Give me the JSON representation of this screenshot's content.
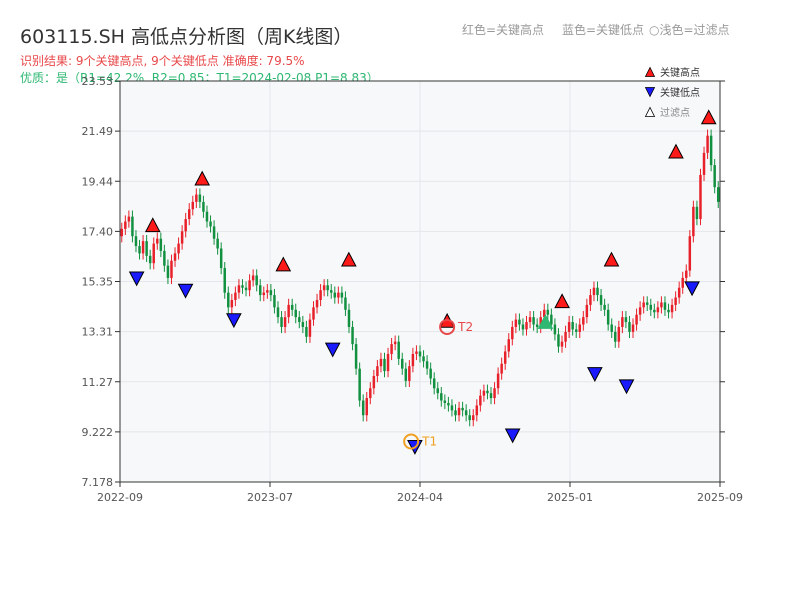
{
  "header": {
    "title": "603115.SH 高低点分析图（周K线图）",
    "legend_red": "红色=关键高点",
    "legend_blue": "蓝色=关键低点",
    "legend_light": "○浅色=过滤点",
    "result_line": "识别结果: 9个关键高点, 9个关键低点  准确度: 79.5%",
    "quality_line": "优质：是（R1=42.2%, R2=0.85；T1=2024-02-08 P1=8.83）"
  },
  "colors": {
    "up": "#e8202a",
    "down": "#11903f",
    "high_marker": "#ff1a1a",
    "low_marker": "#1a1aff",
    "t_marker": "#f0a020",
    "t2_marker": "#e8484a",
    "plot_bg": "#f7f8fa"
  },
  "chart_data": {
    "type": "candlestick",
    "title": "603115.SH 高低点分析图（周K线图）",
    "ylim": [
      7.178,
      23.53
    ],
    "y_ticks": [
      "7.178",
      "9.222",
      "11.27",
      "13.31",
      "15.35",
      "17.40",
      "19.44",
      "21.49",
      "23.53"
    ],
    "x_ticks": [
      "2022-09",
      "2023-07",
      "2024-04",
      "2025-01",
      "2025-09"
    ],
    "close_series": [
      17.5,
      17.8,
      18.0,
      17.2,
      16.8,
      16.5,
      17.0,
      16.4,
      16.1,
      16.9,
      17.1,
      16.6,
      16.0,
      15.5,
      16.2,
      16.5,
      16.9,
      17.4,
      17.9,
      18.3,
      18.6,
      18.9,
      18.6,
      18.2,
      17.8,
      17.6,
      17.1,
      16.7,
      15.9,
      14.9,
      14.3,
      14.6,
      14.9,
      15.2,
      15.1,
      15.0,
      15.4,
      15.6,
      15.2,
      14.8,
      14.9,
      15.0,
      14.8,
      14.3,
      13.9,
      13.5,
      13.9,
      14.4,
      14.2,
      13.9,
      13.7,
      13.5,
      13.1,
      13.8,
      14.3,
      14.6,
      15.0,
      15.2,
      15.0,
      14.9,
      14.7,
      14.9,
      14.7,
      14.2,
      13.5,
      12.8,
      11.8,
      10.5,
      9.9,
      10.6,
      11.0,
      11.5,
      11.9,
      12.2,
      11.7,
      12.4,
      12.8,
      12.9,
      12.2,
      11.8,
      11.3,
      11.9,
      12.4,
      12.5,
      12.3,
      12.1,
      11.8,
      11.4,
      11.0,
      10.8,
      10.5,
      10.4,
      10.3,
      10.1,
      9.9,
      10.2,
      10.1,
      9.9,
      9.7,
      9.9,
      10.3,
      10.7,
      10.9,
      10.8,
      10.6,
      11.0,
      11.6,
      12.0,
      12.5,
      13.0,
      13.5,
      13.8,
      13.6,
      13.4,
      13.7,
      13.9,
      13.6,
      13.5,
      13.9,
      14.2,
      14.0,
      13.6,
      13.2,
      12.7,
      12.9,
      13.3,
      13.7,
      13.4,
      13.3,
      13.6,
      13.9,
      14.4,
      14.8,
      15.1,
      14.8,
      14.4,
      14.2,
      13.6,
      13.3,
      12.9,
      13.5,
      13.9,
      13.7,
      13.3,
      13.6,
      14.0,
      14.3,
      14.5,
      14.4,
      14.2,
      14.1,
      14.3,
      14.5,
      14.2,
      14.1,
      14.4,
      14.7,
      15.1,
      15.5,
      15.8,
      17.2,
      18.4,
      17.9,
      19.7,
      20.6,
      21.3,
      20.1,
      19.2,
      18.6
    ],
    "annotations": {
      "key_highs": [
        {
          "date": "2022-10",
          "value": 17.4
        },
        {
          "date": "2023-01",
          "value": 19.3
        },
        {
          "date": "2023-06",
          "value": 15.8
        },
        {
          "date": "2023-10",
          "value": 16.0
        },
        {
          "date": "2024-04",
          "value": 13.5
        },
        {
          "date": "2024-11",
          "value": 14.3
        },
        {
          "date": "2025-02",
          "value": 16.0
        },
        {
          "date": "2025-06",
          "value": 20.4
        },
        {
          "date": "2025-08",
          "value": 21.8
        }
      ],
      "key_lows": [
        {
          "date": "2022-09",
          "value": 15.7
        },
        {
          "date": "2022-12",
          "value": 15.2
        },
        {
          "date": "2023-03",
          "value": 14.0
        },
        {
          "date": "2023-09",
          "value": 12.8
        },
        {
          "date": "2024-02",
          "value": 8.83
        },
        {
          "date": "2024-08",
          "value": 9.3
        },
        {
          "date": "2025-01",
          "value": 11.8
        },
        {
          "date": "2025-03",
          "value": 11.3
        },
        {
          "date": "2025-07",
          "value": 15.3
        }
      ],
      "filtered_points": [
        {
          "date": "2024-10",
          "value": 13.7
        }
      ],
      "t_points": [
        {
          "label": "T1",
          "date": "2024-02-08",
          "value": 8.83
        },
        {
          "label": "T2",
          "date": "2024-04",
          "value": 13.5
        }
      ]
    },
    "legend": [
      {
        "label": "关键高点",
        "marker": "triangle-up-red"
      },
      {
        "label": "关键低点",
        "marker": "triangle-down-blue"
      },
      {
        "label": "过滤点",
        "marker": "triangle-up-light"
      }
    ]
  }
}
